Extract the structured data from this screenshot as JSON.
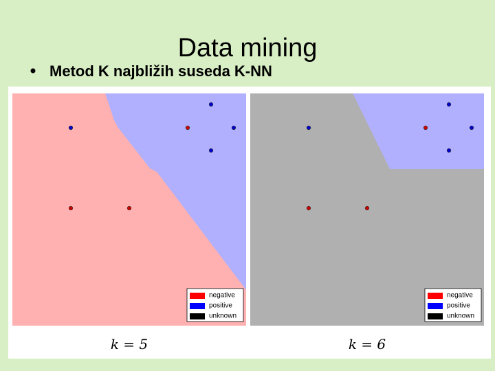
{
  "header": {
    "title": "Data mining",
    "bullet": "Metod K najbližih suseda K-NN"
  },
  "panels": [
    {
      "legend": [
        "negative",
        "positive",
        "unknown"
      ],
      "caption": "k = 5"
    },
    {
      "legend": [
        "negative",
        "positive",
        "unknown"
      ],
      "caption": "k = 6"
    }
  ]
}
